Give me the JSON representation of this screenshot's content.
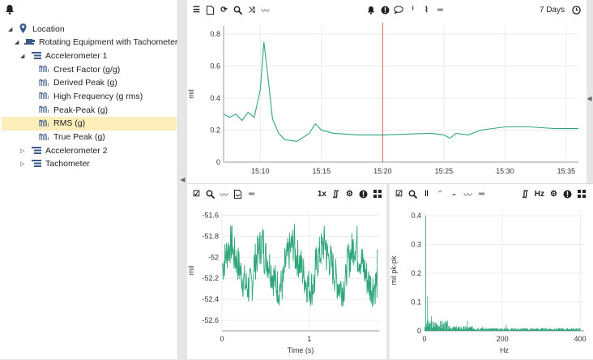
{
  "tree": {
    "root_label": "Location",
    "equipment_label": "Rotating Equipment with Tachometer",
    "accel1_label": "Accelerometer 1",
    "measures": [
      "Crest Factor (g/g)",
      "Derived Peak (g)",
      "High Frequency (g rms)",
      "Peak-Peak (g)",
      "RMS (g)",
      "True Peak (g)"
    ],
    "selected_index": 4,
    "accel2_label": "Accelerometer 2",
    "tach_label": "Tachometer"
  },
  "top_toolbar": {
    "range_label": "7 Days"
  },
  "bl_toolbar": {
    "speed_label": "1x"
  },
  "br_toolbar": {
    "unit_label": "Hz"
  },
  "colors": {
    "series": "#2ea67a",
    "cursor": "#e06060",
    "selected": "#fbeebb"
  },
  "chart_data": [
    {
      "type": "line",
      "title": "",
      "xlabel": "",
      "ylabel": "mil",
      "x_ticks": [
        "15:10",
        "15:15",
        "15:20",
        "15:25",
        "15:30",
        "15:35"
      ],
      "y_ticks": [
        "0",
        "0.2",
        "0.4",
        "0.6",
        "0.8"
      ],
      "ylim": [
        0,
        0.85
      ],
      "xlim": [
        "15:07",
        "15:36"
      ],
      "cursor_x": "15:20",
      "series": [
        {
          "x": [
            "15:07",
            "15:07.5",
            "15:08",
            "15:08.5",
            "15:09",
            "15:09.5",
            "15:10",
            "15:10.3",
            "15:10.7",
            "15:11",
            "15:11.5",
            "15:12",
            "15:13",
            "15:14",
            "15:14.5",
            "15:15",
            "15:16",
            "15:18",
            "15:20",
            "15:22",
            "15:24",
            "15:25",
            "15:25.5",
            "15:26",
            "15:27",
            "15:28",
            "15:29",
            "15:30",
            "15:32",
            "15:34",
            "15:36"
          ],
          "values": [
            0.3,
            0.28,
            0.3,
            0.26,
            0.31,
            0.28,
            0.45,
            0.75,
            0.48,
            0.27,
            0.18,
            0.14,
            0.13,
            0.18,
            0.24,
            0.2,
            0.18,
            0.17,
            0.17,
            0.175,
            0.18,
            0.17,
            0.15,
            0.18,
            0.17,
            0.2,
            0.21,
            0.22,
            0.22,
            0.21,
            0.21
          ]
        }
      ],
      "grid": true
    },
    {
      "type": "line",
      "title": "",
      "xlabel": "Time (s)",
      "ylabel": "mil",
      "x_ticks": [
        "0",
        "1"
      ],
      "y_ticks": [
        "-51.6",
        "-51.8",
        "-52",
        "-52.2",
        "-52.4",
        "-52.6"
      ],
      "ylim": [
        -52.7,
        -51.55
      ],
      "xlim": [
        0,
        1.8
      ],
      "cycles": 5,
      "waveform_range": [
        -52.55,
        -51.65
      ],
      "grid": true
    },
    {
      "type": "line",
      "title": "",
      "xlabel": "Hz",
      "ylabel": "mil pk-pk",
      "x_ticks": [
        "0",
        "200",
        "400"
      ],
      "y_ticks": [
        "0",
        "0.1",
        "0.2",
        "0.3",
        "0.4"
      ],
      "ylim": [
        0,
        0.42
      ],
      "xlim": [
        0,
        410
      ],
      "peaks": [
        {
          "x": 3,
          "y": 0.4
        },
        {
          "x": 8,
          "y": 0.12
        },
        {
          "x": 18,
          "y": 0.05
        },
        {
          "x": 110,
          "y": 0.035
        },
        {
          "x": 210,
          "y": 0.02
        }
      ],
      "grid": true
    }
  ]
}
